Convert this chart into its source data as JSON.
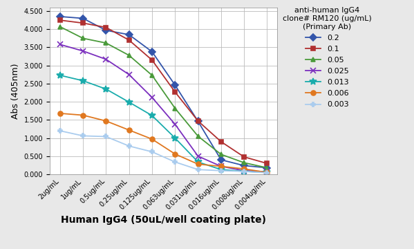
{
  "x_labels": [
    "2ug/mL",
    "1ug/mL",
    "0.5ug/mL",
    "0.25ug/mL",
    "0.125ug/mL",
    "0.063ug/mL",
    "0.031ug/mL",
    "0.016ug/mL",
    "0.008ug/mL",
    "0.004ug/mL"
  ],
  "xlabel": "Human IgG4 (50uL/well coating plate)",
  "ylabel": "Abs (405nm)",
  "legend_title": "anti-human IgG4\nclone# RM120 (ug/mL)\n(Primary Ab)",
  "ylim": [
    0.0,
    4.6
  ],
  "yticks": [
    0.0,
    0.5,
    1.0,
    1.5,
    2.0,
    2.5,
    3.0,
    3.5,
    4.0,
    4.5
  ],
  "series": [
    {
      "label": "0.2",
      "color": "#3355AA",
      "marker": "D",
      "markersize": 5,
      "values": [
        4.35,
        4.3,
        3.97,
        3.85,
        3.38,
        2.46,
        1.46,
        0.4,
        0.24,
        0.18
      ]
    },
    {
      "label": "0.1",
      "color": "#B03030",
      "marker": "s",
      "markersize": 5,
      "values": [
        4.25,
        4.17,
        4.05,
        3.7,
        3.15,
        2.27,
        1.47,
        0.9,
        0.48,
        0.3
      ]
    },
    {
      "label": "0.05",
      "color": "#4A9A3A",
      "marker": "^",
      "markersize": 5,
      "values": [
        4.07,
        3.75,
        3.62,
        3.28,
        2.73,
        1.82,
        1.05,
        0.55,
        0.32,
        0.18
      ]
    },
    {
      "label": "0.025",
      "color": "#7B2FBE",
      "marker": "x",
      "markersize": 6,
      "values": [
        3.58,
        3.4,
        3.17,
        2.75,
        2.12,
        1.38,
        0.5,
        0.22,
        0.1,
        0.07
      ]
    },
    {
      "label": "0.013",
      "color": "#1AACAC",
      "marker": "*",
      "markersize": 7,
      "values": [
        2.73,
        2.58,
        2.35,
        1.99,
        1.62,
        1.0,
        0.34,
        0.13,
        0.08,
        0.05
      ]
    },
    {
      "label": "0.006",
      "color": "#E07820",
      "marker": "o",
      "markersize": 5,
      "values": [
        1.68,
        1.63,
        1.47,
        1.22,
        0.97,
        0.56,
        0.28,
        0.22,
        0.15,
        0.05
      ]
    },
    {
      "label": "0.003",
      "color": "#AACCEE",
      "marker": "P",
      "markersize": 5,
      "values": [
        1.2,
        1.06,
        1.04,
        0.78,
        0.62,
        0.34,
        0.13,
        0.1,
        0.08,
        0.04
      ]
    }
  ],
  "fig_width": 5.99,
  "fig_height": 3.6,
  "dpi": 100,
  "background_color": "#e8e8e8",
  "plot_bg_color": "#ffffff",
  "grid_color": "#bbbbbb",
  "legend_fontsize": 8,
  "axis_label_fontsize": 9,
  "tick_fontsize": 7,
  "xlabel_fontsize": 10
}
